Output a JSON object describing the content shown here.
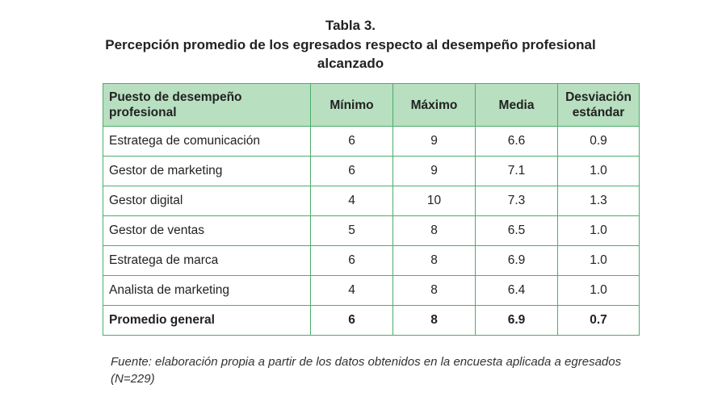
{
  "title": "Tabla 3.",
  "subtitle": "Percepción promedio de los egresados respecto al desempeño profesional alcanzado",
  "table": {
    "headers": [
      "Puesto de desempeño profesional",
      "Mínimo",
      "Máximo",
      "Media",
      "Desviación estándar"
    ],
    "rows": [
      [
        "Estratega de comunicación",
        "6",
        "9",
        "6.6",
        "0.9"
      ],
      [
        "Gestor de marketing",
        "6",
        "9",
        "7.1",
        "1.0"
      ],
      [
        "Gestor digital",
        "4",
        "10",
        "7.3",
        "1.3"
      ],
      [
        "Gestor de ventas",
        "5",
        "8",
        "6.5",
        "1.0"
      ],
      [
        "Estratega de marca",
        "6",
        "8",
        "6.9",
        "1.0"
      ],
      [
        "Analista de marketing",
        "4",
        "8",
        "6.4",
        "1.0"
      ]
    ],
    "total": [
      "Promedio general",
      "6",
      "8",
      "6.9",
      "0.7"
    ]
  },
  "source": "Fuente: elaboración propia a partir de los datos obtenidos en la encuesta aplicada a egresados (N=229)",
  "colors": {
    "border": "#4cae6a",
    "header_bg": "#b7dfc0"
  }
}
